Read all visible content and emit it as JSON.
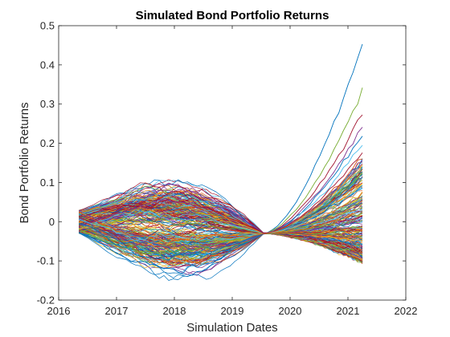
{
  "chart_data": {
    "type": "line",
    "title": "Simulated Bond Portfolio Returns",
    "xlabel": "Simulation Dates",
    "ylabel": "Bond Portfolio Returns",
    "xlim": [
      2016,
      2022
    ],
    "ylim": [
      -0.2,
      0.5
    ],
    "x_ticks": [
      "2016",
      "2017",
      "2018",
      "2019",
      "2020",
      "2021",
      "2022"
    ],
    "y_ticks": [
      "-0.2",
      "-0.1",
      "0",
      "0.1",
      "0.2",
      "0.3",
      "0.4",
      "0.5"
    ],
    "grid": false,
    "legend": "none",
    "series_colors": [
      "#0072BD",
      "#D95319",
      "#EDB120",
      "#7E2F8E",
      "#77AC30",
      "#4DBEEE",
      "#A2142F"
    ],
    "x_start": 2016.35,
    "x_end": 2021.25,
    "convergence_point": {
      "x": 2019.55,
      "y": -0.03
    },
    "series_count": 300,
    "series_end_range": [
      -0.1,
      0.46
    ],
    "highlighted_series_end": [
      {
        "color": "#0072BD",
        "end_value": 0.46
      },
      {
        "color": "#77AC30",
        "end_value": 0.335
      },
      {
        "color": "#A2142F",
        "end_value": 0.28
      },
      {
        "color": "#7E2F8E",
        "end_value": 0.245
      },
      {
        "color": "#0072BD",
        "end_value": 0.225
      },
      {
        "color": "#4DBEEE",
        "end_value": 0.2
      },
      {
        "color": "#A2142F",
        "end_value": 0.18
      },
      {
        "color": "#D95319",
        "end_value": 0.165
      }
    ]
  }
}
